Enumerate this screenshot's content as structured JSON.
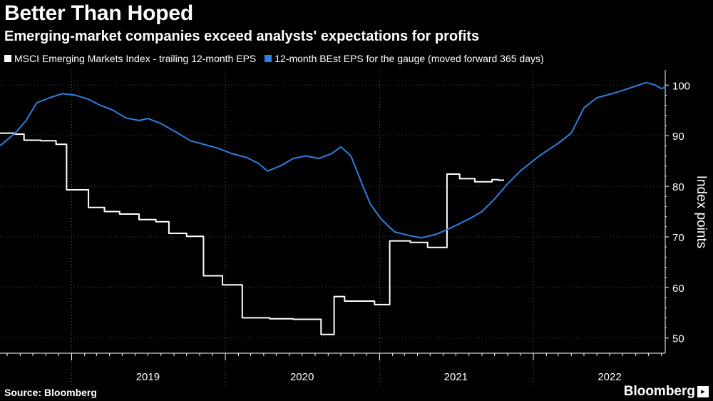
{
  "title": "Better Than Hoped",
  "subtitle": "Emerging-market companies exceed analysts' expectations for profits",
  "source": "Source: Bloomberg",
  "brand": "Bloomberg",
  "chart_data": {
    "type": "line",
    "title": "Better Than Hoped",
    "subtitle": "Emerging-market companies exceed analysts' expectations for profits",
    "ylabel": "Index points",
    "ylim": [
      47,
      103
    ],
    "xlim": [
      "2018-07-15",
      "2022-11-10"
    ],
    "yticks": [
      50,
      60,
      70,
      80,
      90,
      100
    ],
    "xticks": [
      {
        "label": "2019",
        "date": "2019-07-01"
      },
      {
        "label": "2020",
        "date": "2020-07-01"
      },
      {
        "label": "2021",
        "date": "2021-07-01"
      },
      {
        "label": "2022",
        "date": "2022-07-01"
      }
    ],
    "grid": "vertical dotted lines at year boundaries",
    "legend_position": "top-left",
    "series": [
      {
        "name": "MSCI Emerging Markets Index - trailing 12-month EPS",
        "color": "#ffffff",
        "step": true,
        "points": [
          [
            "2018-07-15",
            90.5
          ],
          [
            "2018-08-20",
            90.3
          ],
          [
            "2018-09-10",
            89.1
          ],
          [
            "2018-10-20",
            89.0
          ],
          [
            "2018-11-25",
            88.3
          ],
          [
            "2018-12-20",
            79.3
          ],
          [
            "2019-02-10",
            75.8
          ],
          [
            "2019-03-20",
            75.0
          ],
          [
            "2019-04-25",
            74.5
          ],
          [
            "2019-06-10",
            73.4
          ],
          [
            "2019-07-20",
            73.0
          ],
          [
            "2019-08-20",
            70.7
          ],
          [
            "2019-10-01",
            70.1
          ],
          [
            "2019-11-10",
            62.3
          ],
          [
            "2019-12-25",
            60.5
          ],
          [
            "2020-02-10",
            54.0
          ],
          [
            "2020-04-15",
            53.8
          ],
          [
            "2020-06-10",
            53.7
          ],
          [
            "2020-08-15",
            50.7
          ],
          [
            "2020-09-15",
            58.2
          ],
          [
            "2020-10-10",
            57.3
          ],
          [
            "2020-12-20",
            56.6
          ],
          [
            "2021-01-25",
            69.2
          ],
          [
            "2021-03-15",
            68.9
          ],
          [
            "2021-04-25",
            67.9
          ],
          [
            "2021-06-10",
            82.4
          ],
          [
            "2021-07-10",
            81.5
          ],
          [
            "2021-08-15",
            80.9
          ],
          [
            "2021-09-25",
            81.3
          ],
          [
            "2021-10-10",
            81.2
          ]
        ]
      },
      {
        "name": "12-month BEst EPS for the gauge (moved forward 365 days)",
        "color": "#2f7fde",
        "step": false,
        "points": [
          [
            "2018-07-15",
            88.0
          ],
          [
            "2018-08-20",
            90.5
          ],
          [
            "2018-09-15",
            93.0
          ],
          [
            "2018-10-10",
            96.5
          ],
          [
            "2018-11-10",
            97.5
          ],
          [
            "2018-12-10",
            98.3
          ],
          [
            "2019-01-10",
            98.0
          ],
          [
            "2019-02-10",
            97.2
          ],
          [
            "2019-03-10",
            96.0
          ],
          [
            "2019-04-10",
            95.0
          ],
          [
            "2019-05-10",
            93.5
          ],
          [
            "2019-06-10",
            93.0
          ],
          [
            "2019-07-01",
            93.4
          ],
          [
            "2019-08-01",
            92.4
          ],
          [
            "2019-09-10",
            90.5
          ],
          [
            "2019-10-10",
            89.0
          ],
          [
            "2019-11-10",
            88.3
          ],
          [
            "2019-12-15",
            87.5
          ],
          [
            "2020-01-15",
            86.5
          ],
          [
            "2020-02-20",
            85.7
          ],
          [
            "2020-03-20",
            84.5
          ],
          [
            "2020-04-10",
            83.0
          ],
          [
            "2020-05-10",
            84.0
          ],
          [
            "2020-06-10",
            85.5
          ],
          [
            "2020-07-10",
            86.0
          ],
          [
            "2020-08-10",
            85.5
          ],
          [
            "2020-09-10",
            86.5
          ],
          [
            "2020-10-01",
            87.8
          ],
          [
            "2020-10-25",
            86.0
          ],
          [
            "2020-11-20",
            80.5
          ],
          [
            "2020-12-10",
            76.5
          ],
          [
            "2021-01-05",
            73.5
          ],
          [
            "2021-02-05",
            71.0
          ],
          [
            "2021-03-10",
            70.3
          ],
          [
            "2021-04-10",
            69.8
          ],
          [
            "2021-05-15",
            70.5
          ],
          [
            "2021-06-20",
            71.8
          ],
          [
            "2021-08-01",
            73.5
          ],
          [
            "2021-09-01",
            75.0
          ],
          [
            "2021-10-01",
            77.5
          ],
          [
            "2021-11-01",
            80.5
          ],
          [
            "2021-12-01",
            83.0
          ],
          [
            "2022-01-15",
            86.0
          ],
          [
            "2022-03-01",
            88.5
          ],
          [
            "2022-04-01",
            90.5
          ],
          [
            "2022-05-01",
            95.5
          ],
          [
            "2022-06-01",
            97.5
          ],
          [
            "2022-07-15",
            98.5
          ],
          [
            "2022-09-01",
            99.8
          ],
          [
            "2022-09-25",
            100.5
          ],
          [
            "2022-10-15",
            100.1
          ],
          [
            "2022-11-01",
            99.3
          ],
          [
            "2022-11-10",
            99.6
          ]
        ]
      }
    ]
  }
}
